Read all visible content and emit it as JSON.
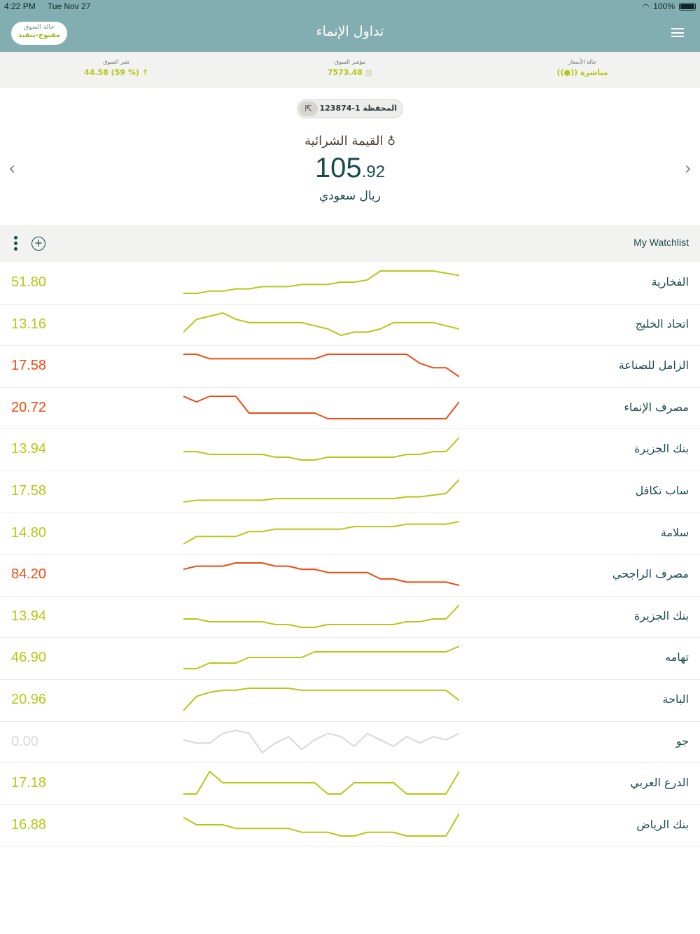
{
  "status": {
    "time": "4:22 PM",
    "date": "Tue Nov 27",
    "battery": "100%"
  },
  "header": {
    "title": "تداول الإنماء",
    "market_status_label": "حالة السوق",
    "market_status_value": "مفتوح-تنفيذ"
  },
  "market": {
    "change_label": "تغير السوق",
    "change_value": "44.58 (59 %)",
    "index_label": "مؤشر السوق",
    "index_value": "7573.48",
    "rates_label": "حالة الأسعار",
    "rates_value": "مباشرة"
  },
  "portfolio": {
    "text": "المحفظة 1-123874",
    "purchase_label": "القيمة الشرائية",
    "value_int": "105",
    "value_dec": ".92",
    "currency": "ريال سعودي"
  },
  "watchlist": {
    "title": "My Watchlist",
    "colors": {
      "up": "#b5c816",
      "down": "#f04a10",
      "neutral": "#d8d8d8"
    },
    "rows": [
      {
        "name": "الفخارية",
        "price": "51.80",
        "trend": "up",
        "spark": [
          10,
          10,
          11,
          11,
          12,
          12,
          13,
          13,
          13,
          14,
          14,
          14,
          15,
          15,
          16,
          20,
          20,
          20,
          20,
          20,
          19,
          18
        ]
      },
      {
        "name": "اتحاد الخليج",
        "price": "13.16",
        "trend": "up",
        "spark": [
          10,
          14,
          15,
          16,
          14,
          13,
          13,
          13,
          13,
          13,
          12,
          11,
          9,
          10,
          10,
          11,
          13,
          13,
          13,
          13,
          12,
          11
        ]
      },
      {
        "name": "الزامل للصناعة",
        "price": "17.58",
        "trend": "down",
        "spark": [
          19,
          19,
          18,
          18,
          18,
          18,
          18,
          18,
          18,
          18,
          18,
          19,
          19,
          19,
          19,
          19,
          19,
          19,
          17,
          16,
          16,
          14
        ]
      },
      {
        "name": "مصرف الإنماء",
        "price": "20.72",
        "trend": "down",
        "spark": [
          20,
          19,
          20,
          20,
          20,
          17,
          17,
          17,
          17,
          17,
          17,
          16,
          16,
          16,
          16,
          16,
          16,
          16,
          16,
          16,
          16,
          19
        ]
      },
      {
        "name": "بنك الجزيرة",
        "price": "13.94",
        "trend": "up",
        "spark": [
          11,
          11,
          10,
          10,
          10,
          10,
          10,
          9,
          9,
          8,
          8,
          9,
          9,
          9,
          9,
          9,
          9,
          10,
          10,
          11,
          11,
          16
        ]
      },
      {
        "name": "ساب تكافل",
        "price": "17.58",
        "trend": "up",
        "spark": [
          5,
          6,
          6,
          6,
          6,
          6,
          6,
          7,
          7,
          7,
          7,
          7,
          7,
          7,
          7,
          7,
          7,
          8,
          8,
          9,
          10,
          18
        ]
      },
      {
        "name": "سلامة",
        "price": "14.80",
        "trend": "up",
        "spark": [
          5,
          8,
          8,
          8,
          8,
          10,
          10,
          11,
          11,
          11,
          11,
          11,
          11,
          12,
          12,
          12,
          12,
          13,
          13,
          13,
          13,
          14
        ]
      },
      {
        "name": "مصرف الراجحي",
        "price": "84.20",
        "trend": "down",
        "spark": [
          15,
          16,
          16,
          16,
          17,
          17,
          17,
          16,
          16,
          15,
          15,
          14,
          14,
          14,
          14,
          12,
          12,
          11,
          11,
          11,
          11,
          10
        ]
      },
      {
        "name": "بنك الجزيرة",
        "price": "13.94",
        "trend": "up",
        "spark": [
          11,
          11,
          10,
          10,
          10,
          10,
          10,
          9,
          9,
          8,
          8,
          9,
          9,
          9,
          9,
          9,
          9,
          10,
          10,
          11,
          11,
          16
        ]
      },
      {
        "name": "تهامه",
        "price": "46.90",
        "trend": "up",
        "spark": [
          10,
          10,
          11,
          11,
          11,
          12,
          12,
          12,
          12,
          12,
          13,
          13,
          13,
          13,
          13,
          13,
          13,
          13,
          13,
          13,
          13,
          14
        ]
      },
      {
        "name": "الباحة",
        "price": "20.96",
        "trend": "up",
        "spark": [
          5,
          12,
          14,
          15,
          15,
          16,
          16,
          16,
          16,
          15,
          15,
          15,
          15,
          15,
          15,
          15,
          15,
          15,
          15,
          15,
          15,
          10
        ]
      },
      {
        "name": "جو",
        "price": "0.00",
        "trend": "neutral",
        "spark": [
          12,
          11,
          11,
          14,
          15,
          14,
          8,
          11,
          13,
          9,
          12,
          14,
          13,
          10,
          14,
          12,
          10,
          13,
          11,
          13,
          12,
          14
        ]
      },
      {
        "name": "الدرع العربي",
        "price": "17.18",
        "trend": "up",
        "spark": [
          2,
          2,
          12,
          7,
          7,
          7,
          7,
          7,
          7,
          7,
          7,
          2,
          2,
          7,
          7,
          7,
          7,
          2,
          2,
          2,
          2,
          12
        ]
      },
      {
        "name": "بنك الرياض",
        "price": "16.88",
        "trend": "up",
        "spark": [
          8,
          6,
          6,
          6,
          5,
          5,
          5,
          5,
          5,
          4,
          4,
          4,
          3,
          3,
          4,
          4,
          4,
          3,
          3,
          3,
          3,
          9
        ]
      }
    ]
  },
  "icons": {
    "menu": "menu-icon",
    "add": "add-icon",
    "more": "kebab-icon",
    "external": "external-link-icon",
    "money_bag": "money-bag-icon",
    "prev": "chevron-left-icon",
    "next": "chevron-right-icon"
  }
}
